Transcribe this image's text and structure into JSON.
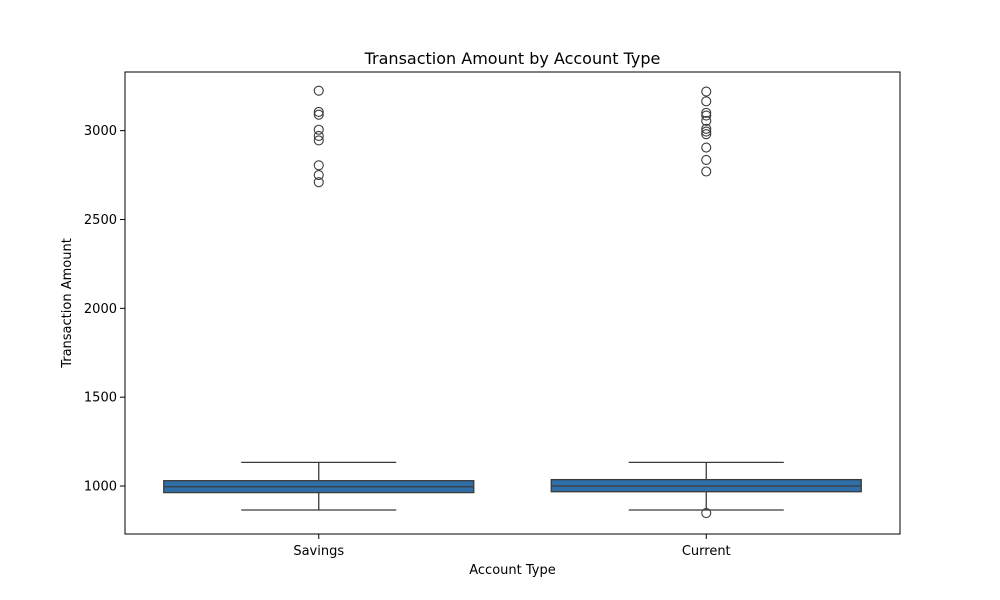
{
  "chart_data": {
    "type": "box",
    "title": "Transaction Amount by Account Type",
    "xlabel": "Account Type",
    "ylabel": "Transaction Amount",
    "ylim": [
      730,
      3330
    ],
    "yticks": [
      1000,
      1500,
      2000,
      2500,
      3000
    ],
    "grid": false,
    "box_color": "#2E6FA8",
    "line_color": "#3a3a3a",
    "categories": [
      "Savings",
      "Current"
    ],
    "boxes": [
      {
        "category": "Savings",
        "whisker_low": 865,
        "q1": 963,
        "median": 996,
        "q3": 1030,
        "whisker_high": 1133,
        "outliers": [
          3225,
          3105,
          3090,
          3005,
          2970,
          2945,
          2805,
          2750,
          2710
        ]
      },
      {
        "category": "Current",
        "whisker_low": 865,
        "q1": 968,
        "median": 1000,
        "q3": 1036,
        "whisker_high": 1133,
        "outliers": [
          3220,
          3165,
          3100,
          3085,
          3055,
          3010,
          2995,
          2980,
          2905,
          2835,
          2770,
          848
        ]
      }
    ]
  }
}
